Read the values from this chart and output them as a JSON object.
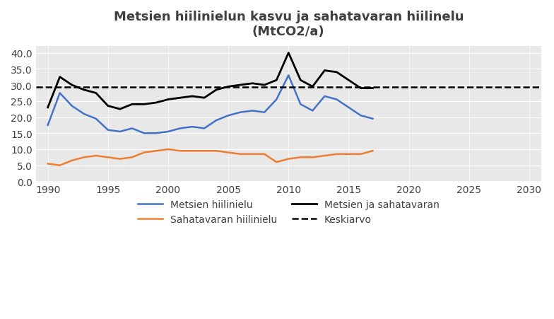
{
  "title": "Metsien hiilinielun kasvu ja sahatavaran hiilinelu\n(MtCO2/a)",
  "xlim": [
    1989,
    2031
  ],
  "ylim": [
    0,
    42
  ],
  "yticks": [
    0.0,
    5.0,
    10.0,
    15.0,
    20.0,
    25.0,
    30.0,
    35.0,
    40.0
  ],
  "xticks": [
    1990,
    1995,
    2000,
    2005,
    2010,
    2015,
    2020,
    2025,
    2030
  ],
  "keskiarvo": 29.3,
  "background_color": "#ffffff",
  "plot_bg_color": "#e8e8e8",
  "metsien_hiilinielu": {
    "years": [
      1990,
      1991,
      1992,
      1993,
      1994,
      1995,
      1996,
      1997,
      1998,
      1999,
      2000,
      2001,
      2002,
      2003,
      2004,
      2005,
      2006,
      2007,
      2008,
      2009,
      2010,
      2011,
      2012,
      2013,
      2014,
      2015,
      2016,
      2017
    ],
    "values": [
      17.5,
      27.5,
      23.5,
      21.0,
      19.5,
      16.0,
      15.5,
      16.5,
      15.0,
      15.0,
      15.5,
      16.5,
      17.0,
      16.5,
      19.0,
      20.5,
      21.5,
      22.0,
      21.5,
      25.5,
      33.0,
      24.0,
      22.0,
      26.5,
      25.5,
      23.0,
      20.5,
      19.5
    ],
    "color": "#4472C4",
    "label": "Metsien hiilinielu"
  },
  "sahatavaran_hiilinielu": {
    "years": [
      1990,
      1991,
      1992,
      1993,
      1994,
      1995,
      1996,
      1997,
      1998,
      1999,
      2000,
      2001,
      2002,
      2003,
      2004,
      2005,
      2006,
      2007,
      2008,
      2009,
      2010,
      2011,
      2012,
      2013,
      2014,
      2015,
      2016,
      2017
    ],
    "values": [
      5.5,
      5.0,
      6.5,
      7.5,
      8.0,
      7.5,
      7.0,
      7.5,
      9.0,
      9.5,
      10.0,
      9.5,
      9.5,
      9.5,
      9.5,
      9.0,
      8.5,
      8.5,
      8.5,
      6.0,
      7.0,
      7.5,
      7.5,
      8.0,
      8.5,
      8.5,
      8.5,
      9.5
    ],
    "color": "#ED7D31",
    "label": "Sahatavaran hiilinielu"
  },
  "metsien_ja_sahatavaran": {
    "years": [
      1990,
      1991,
      1992,
      1993,
      1994,
      1995,
      1996,
      1997,
      1998,
      1999,
      2000,
      2001,
      2002,
      2003,
      2004,
      2005,
      2006,
      2007,
      2008,
      2009,
      2010,
      2011,
      2012,
      2013,
      2014,
      2015,
      2016,
      2017
    ],
    "values": [
      23.0,
      32.5,
      30.0,
      28.5,
      27.5,
      23.5,
      22.5,
      24.0,
      24.0,
      24.5,
      25.5,
      26.0,
      26.5,
      26.0,
      28.5,
      29.5,
      30.0,
      30.5,
      30.0,
      31.5,
      40.0,
      31.5,
      29.5,
      34.5,
      34.0,
      31.5,
      29.0,
      29.0
    ],
    "color": "#000000",
    "label": "Metsien ja sahatavaran"
  },
  "legend_order": [
    0,
    2,
    1,
    3
  ]
}
